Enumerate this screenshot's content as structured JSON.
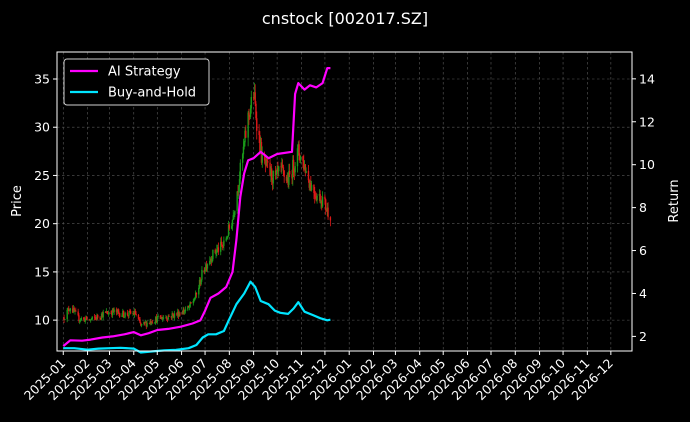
{
  "chart_data": {
    "type": "line",
    "title": "cnstock [002017.SZ]",
    "ylabel": "Price",
    "y2label": "Return",
    "ylim": [
      6.8,
      37.8
    ],
    "y2lim": [
      1.32,
      15.25
    ],
    "xlim": [
      "2024-12-24",
      "2026-12-28"
    ],
    "grid": true,
    "legend_placement": "top-left",
    "yticks": [
      10,
      15,
      20,
      25,
      30,
      35
    ],
    "y2ticks": [
      2,
      4,
      6,
      8,
      10,
      12,
      14
    ],
    "xticks": [
      "2025-01",
      "2025-02",
      "2025-03",
      "2025-04",
      "2025-05",
      "2025-06",
      "2025-07",
      "2025-08",
      "2025-09",
      "2025-10",
      "2025-11",
      "2025-12",
      "2026-01",
      "2026-02",
      "2026-03",
      "2026-04",
      "2026-05",
      "2026-06",
      "2026-07",
      "2026-08",
      "2026-09",
      "2026-10",
      "2026-11",
      "2026-12"
    ],
    "colors": {
      "up": "#1a9b1a",
      "down": "#e01818",
      "ai": "#ff00ff",
      "bh": "#00e5ff",
      "grid": "#5a5a5a",
      "frame": "#ffffff"
    },
    "price_path": [
      [
        "2025-01-02",
        10.3
      ],
      [
        "2025-01-10",
        11.4
      ],
      [
        "2025-01-20",
        10.2
      ],
      [
        "2025-02-05",
        10.0
      ],
      [
        "2025-02-20",
        10.6
      ],
      [
        "2025-03-05",
        10.9
      ],
      [
        "2025-03-20",
        10.6
      ],
      [
        "2025-04-03",
        10.7
      ],
      [
        "2025-04-10",
        9.4
      ],
      [
        "2025-04-25",
        10.0
      ],
      [
        "2025-05-10",
        10.3
      ],
      [
        "2025-05-25",
        10.6
      ],
      [
        "2025-06-10",
        11.2
      ],
      [
        "2025-06-20",
        12.6
      ],
      [
        "2025-06-28",
        15.0
      ],
      [
        "2025-07-05",
        16.2
      ],
      [
        "2025-07-15",
        17.2
      ],
      [
        "2025-07-25",
        17.8
      ],
      [
        "2025-08-05",
        20.5
      ],
      [
        "2025-08-12",
        24.0
      ],
      [
        "2025-08-18",
        27.0
      ],
      [
        "2025-08-25",
        31.0
      ],
      [
        "2025-09-01",
        33.5
      ],
      [
        "2025-09-06",
        30.0
      ],
      [
        "2025-09-12",
        26.5
      ],
      [
        "2025-09-20",
        25.5
      ],
      [
        "2025-09-28",
        24.5
      ],
      [
        "2025-10-05",
        25.5
      ],
      [
        "2025-10-15",
        24.5
      ],
      [
        "2025-10-22",
        26.0
      ],
      [
        "2025-10-28",
        27.5
      ],
      [
        "2025-11-05",
        26.0
      ],
      [
        "2025-11-12",
        24.2
      ],
      [
        "2025-11-20",
        23.0
      ],
      [
        "2025-11-28",
        22.5
      ],
      [
        "2025-12-04",
        21.4
      ],
      [
        "2025-12-08",
        21.0
      ]
    ],
    "series": [
      {
        "name": "AI Strategy",
        "points": [
          [
            "2025-01-01",
            1.55
          ],
          [
            "2025-01-10",
            1.82
          ],
          [
            "2025-01-25",
            1.8
          ],
          [
            "2025-02-05",
            1.85
          ],
          [
            "2025-02-20",
            1.95
          ],
          [
            "2025-03-05",
            2.0
          ],
          [
            "2025-03-20",
            2.1
          ],
          [
            "2025-04-01",
            2.2
          ],
          [
            "2025-04-10",
            2.05
          ],
          [
            "2025-04-20",
            2.15
          ],
          [
            "2025-05-01",
            2.3
          ],
          [
            "2025-05-15",
            2.35
          ],
          [
            "2025-05-31",
            2.45
          ],
          [
            "2025-06-15",
            2.6
          ],
          [
            "2025-06-25",
            2.75
          ],
          [
            "2025-07-01",
            3.2
          ],
          [
            "2025-07-08",
            3.8
          ],
          [
            "2025-07-18",
            4.0
          ],
          [
            "2025-07-28",
            4.3
          ],
          [
            "2025-08-05",
            5.0
          ],
          [
            "2025-08-10",
            6.5
          ],
          [
            "2025-08-15",
            8.5
          ],
          [
            "2025-08-20",
            9.6
          ],
          [
            "2025-08-25",
            10.2
          ],
          [
            "2025-09-01",
            10.3
          ],
          [
            "2025-09-10",
            10.6
          ],
          [
            "2025-09-20",
            10.3
          ],
          [
            "2025-10-01",
            10.5
          ],
          [
            "2025-10-20",
            10.6
          ],
          [
            "2025-10-24",
            13.3
          ],
          [
            "2025-10-28",
            13.8
          ],
          [
            "2025-11-05",
            13.5
          ],
          [
            "2025-11-12",
            13.7
          ],
          [
            "2025-11-20",
            13.6
          ],
          [
            "2025-11-28",
            13.8
          ],
          [
            "2025-12-04",
            14.5
          ],
          [
            "2025-12-08",
            14.5
          ]
        ]
      },
      {
        "name": "Buy-and-Hold",
        "points": [
          [
            "2025-01-01",
            1.45
          ],
          [
            "2025-01-15",
            1.45
          ],
          [
            "2025-02-01",
            1.38
          ],
          [
            "2025-02-15",
            1.43
          ],
          [
            "2025-03-01",
            1.45
          ],
          [
            "2025-03-15",
            1.47
          ],
          [
            "2025-04-01",
            1.43
          ],
          [
            "2025-04-10",
            1.25
          ],
          [
            "2025-04-25",
            1.3
          ],
          [
            "2025-05-10",
            1.35
          ],
          [
            "2025-05-25",
            1.37
          ],
          [
            "2025-06-10",
            1.45
          ],
          [
            "2025-06-20",
            1.6
          ],
          [
            "2025-06-28",
            1.95
          ],
          [
            "2025-07-05",
            2.1
          ],
          [
            "2025-07-15",
            2.1
          ],
          [
            "2025-07-25",
            2.25
          ],
          [
            "2025-08-01",
            2.8
          ],
          [
            "2025-08-10",
            3.5
          ],
          [
            "2025-08-20",
            4.0
          ],
          [
            "2025-08-28",
            4.55
          ],
          [
            "2025-09-03",
            4.3
          ],
          [
            "2025-09-10",
            3.65
          ],
          [
            "2025-09-20",
            3.5
          ],
          [
            "2025-09-28",
            3.2
          ],
          [
            "2025-10-05",
            3.1
          ],
          [
            "2025-10-15",
            3.05
          ],
          [
            "2025-10-22",
            3.3
          ],
          [
            "2025-10-28",
            3.6
          ],
          [
            "2025-11-05",
            3.15
          ],
          [
            "2025-11-15",
            3.0
          ],
          [
            "2025-11-25",
            2.85
          ],
          [
            "2025-12-04",
            2.75
          ],
          [
            "2025-12-08",
            2.78
          ]
        ]
      }
    ]
  }
}
